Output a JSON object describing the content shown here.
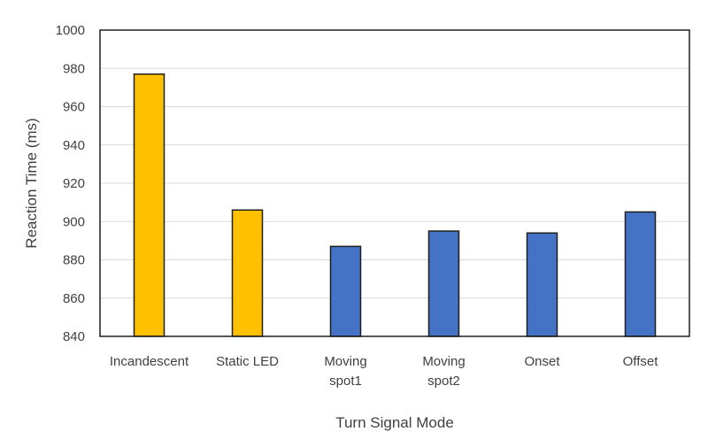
{
  "chart_data": {
    "type": "bar",
    "title": "",
    "xlabel": "Turn Signal Mode",
    "ylabel": "Reaction Time (ms)",
    "ylim": [
      840,
      1000
    ],
    "yticks": [
      840,
      860,
      880,
      900,
      920,
      940,
      960,
      980,
      1000
    ],
    "grid": true,
    "legend": "none",
    "categories": [
      [
        "Incandescent"
      ],
      [
        "Static LED"
      ],
      [
        "Moving",
        "spot1"
      ],
      [
        "Moving",
        "spot2"
      ],
      [
        "Onset"
      ],
      [
        "Offset"
      ]
    ],
    "values": [
      977,
      906,
      887,
      895,
      894,
      905
    ],
    "colors": [
      "#ffc000",
      "#ffc000",
      "#4472c4",
      "#4472c4",
      "#4472c4",
      "#4472c4"
    ]
  }
}
